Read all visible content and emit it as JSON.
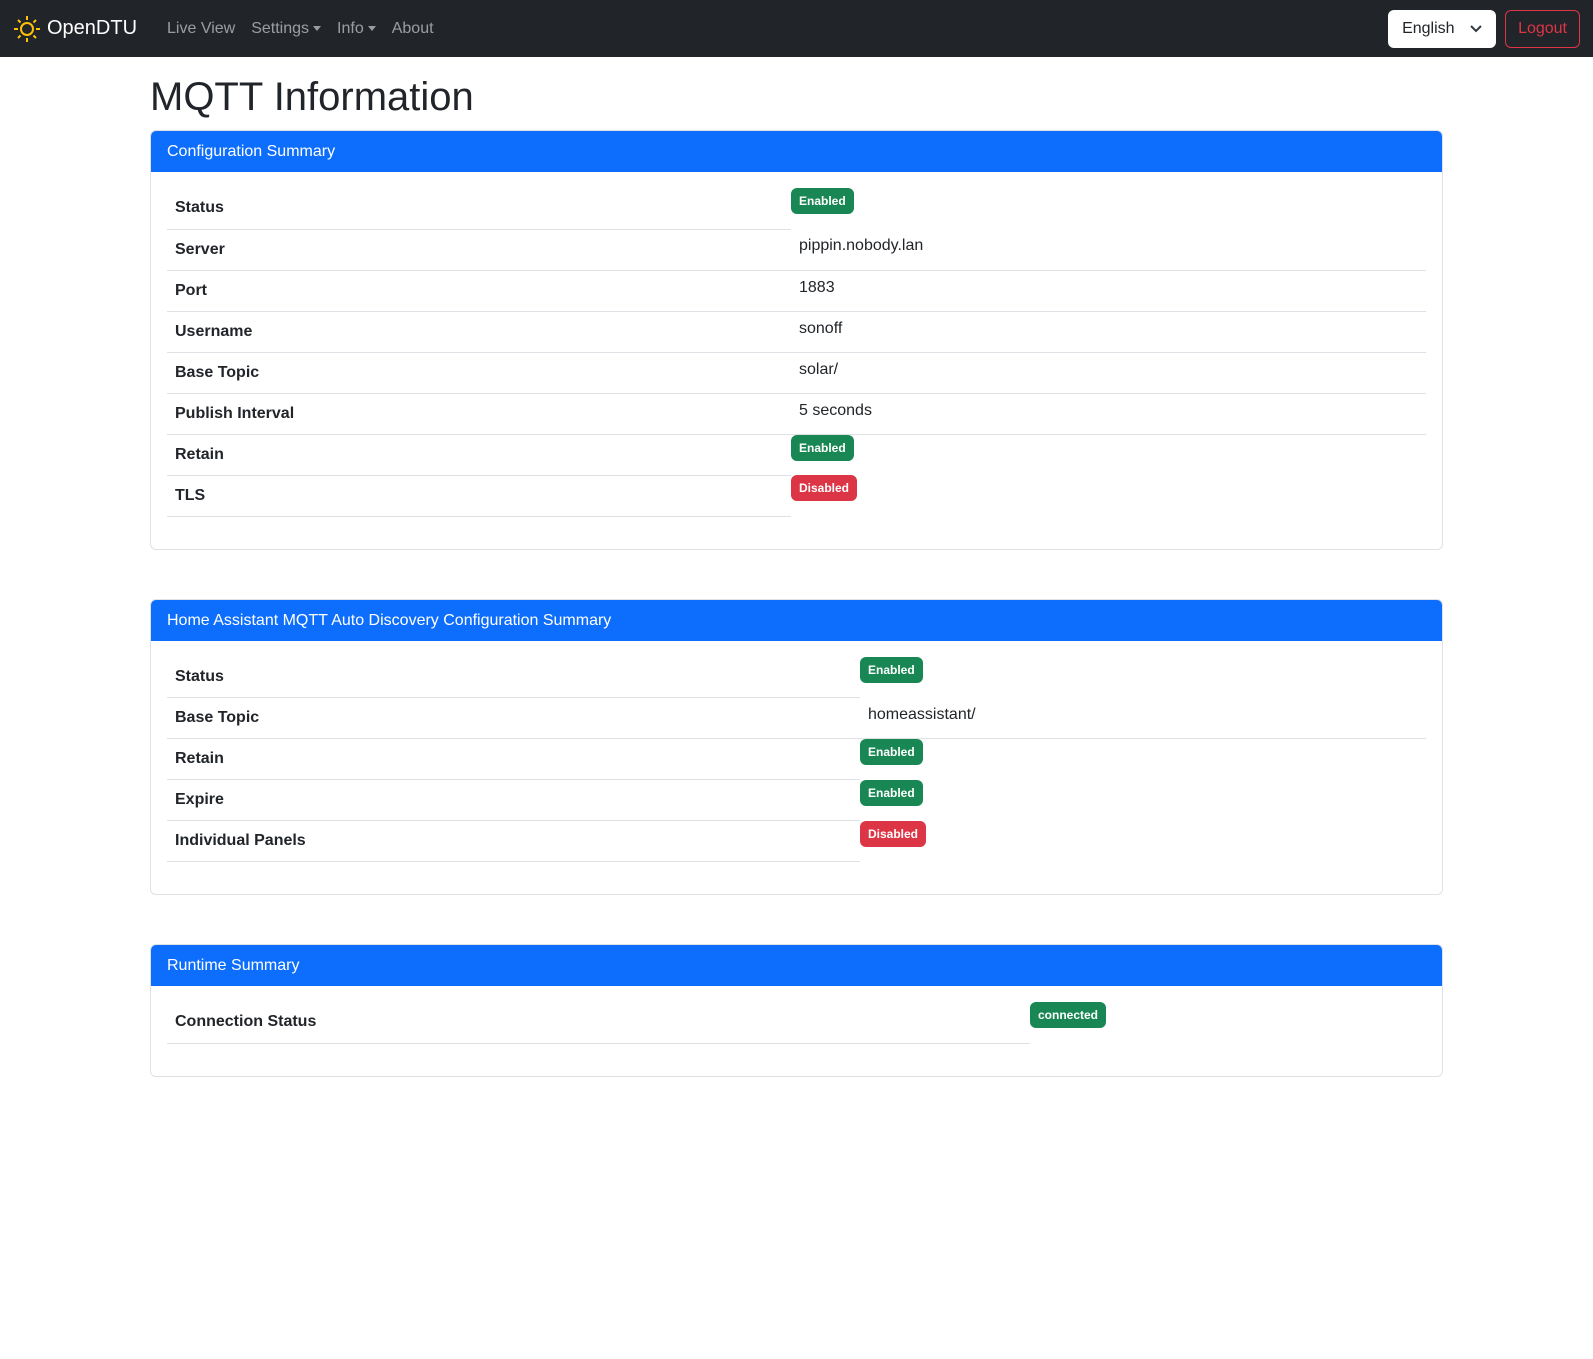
{
  "nav": {
    "brand": "OpenDTU",
    "items": [
      "Live View",
      "Settings",
      "Info",
      "About"
    ],
    "language": "English",
    "logout": "Logout"
  },
  "page": {
    "title": "MQTT Information"
  },
  "cards": [
    {
      "title": "Configuration Summary",
      "rows": [
        {
          "label": "Status",
          "badge": "Enabled",
          "state": "ok"
        },
        {
          "label": "Server",
          "value": "pippin.nobody.lan"
        },
        {
          "label": "Port",
          "value": "1883"
        },
        {
          "label": "Username",
          "value": "sonoff"
        },
        {
          "label": "Base Topic",
          "value": "solar/"
        },
        {
          "label": "Publish Interval",
          "value": "5 seconds"
        },
        {
          "label": "Retain",
          "badge": "Enabled",
          "state": "ok"
        },
        {
          "label": "TLS",
          "badge": "Disabled",
          "state": "bad"
        }
      ]
    },
    {
      "title": "Home Assistant MQTT Auto Discovery Configuration Summary",
      "rows": [
        {
          "label": "Status",
          "badge": "Enabled",
          "state": "ok"
        },
        {
          "label": "Base Topic",
          "value": "homeassistant/"
        },
        {
          "label": "Retain",
          "badge": "Enabled",
          "state": "ok"
        },
        {
          "label": "Expire",
          "badge": "Enabled",
          "state": "ok"
        },
        {
          "label": "Individual Panels",
          "badge": "Disabled",
          "state": "bad"
        }
      ]
    },
    {
      "title": "Runtime Summary",
      "rows": [
        {
          "label": "Connection Status",
          "badge": "connected",
          "state": "ok"
        }
      ]
    }
  ],
  "colors": {
    "primary": "#0d6efd",
    "success": "#198754",
    "danger": "#dc3545",
    "navbar": "#212529"
  }
}
